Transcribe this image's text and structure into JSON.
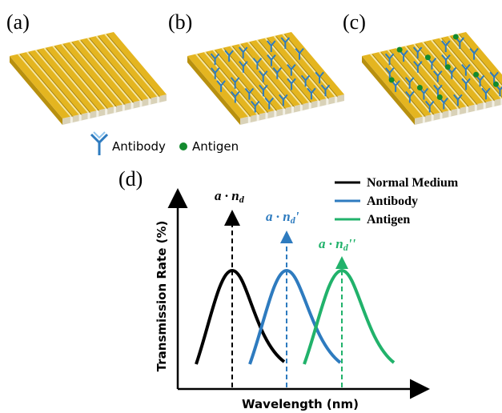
{
  "panels": [
    {
      "label": "(a)"
    },
    {
      "label": "(b)"
    },
    {
      "label": "(c)"
    },
    {
      "label": "(d)"
    }
  ],
  "legend": {
    "antibody": "Antibody",
    "antigen": "Antigen"
  },
  "chart": {
    "y_axis_label": "Transmission Rate (%)",
    "x_axis_label": "Wavelength (nm)",
    "series": [
      {
        "name": "Normal Medium",
        "color": "#000000",
        "annotation": {
          "text": "a · n",
          "subscript": "d"
        }
      },
      {
        "name": "Antibody",
        "color": "#2e7bbf",
        "annotation": {
          "text": "a · n",
          "subscript": "d",
          "suffix": "'"
        }
      },
      {
        "name": "Antigen",
        "color": "#21b26b",
        "annotation": {
          "text": "a · n",
          "subscript": "d",
          "suffix": "''"
        }
      }
    ]
  }
}
